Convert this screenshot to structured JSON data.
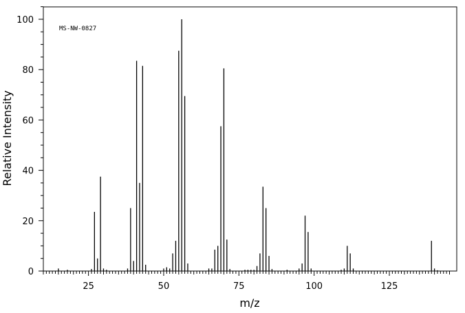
{
  "chart_data": {
    "type": "bar",
    "annotation": "MS-NW-0827",
    "xlabel": "m/z",
    "ylabel": "Relative Intensity",
    "xlim": [
      10,
      145
    ],
    "ylim": [
      0,
      105
    ],
    "x_ticks": [
      25,
      50,
      75,
      100,
      125
    ],
    "y_ticks": [
      0,
      20,
      40,
      60,
      80,
      100
    ],
    "x": [
      15,
      18,
      26,
      27,
      28,
      29,
      30,
      31,
      38,
      39,
      40,
      41,
      42,
      43,
      44,
      50,
      51,
      52,
      53,
      54,
      55,
      56,
      57,
      58,
      65,
      66,
      67,
      68,
      69,
      70,
      71,
      72,
      77,
      78,
      79,
      80,
      81,
      82,
      83,
      84,
      85,
      86,
      91,
      95,
      96,
      97,
      98,
      99,
      109,
      110,
      111,
      112,
      113,
      139,
      140,
      141
    ],
    "values": [
      1,
      0.5,
      0.8,
      23.5,
      5,
      37.5,
      1,
      0.5,
      1,
      25,
      4,
      83.5,
      35,
      81.5,
      2.5,
      1,
      1.5,
      1,
      7,
      12,
      87.5,
      100,
      69.5,
      3,
      1,
      1,
      8.5,
      10,
      57.5,
      80.5,
      12.5,
      0.8,
      0.5,
      0.5,
      0.5,
      0.5,
      2,
      7,
      33.5,
      25,
      6,
      0.8,
      0.5,
      1,
      3,
      22,
      15.5,
      1,
      0.5,
      1,
      10,
      7,
      1,
      12,
      1,
      0.3
    ]
  }
}
